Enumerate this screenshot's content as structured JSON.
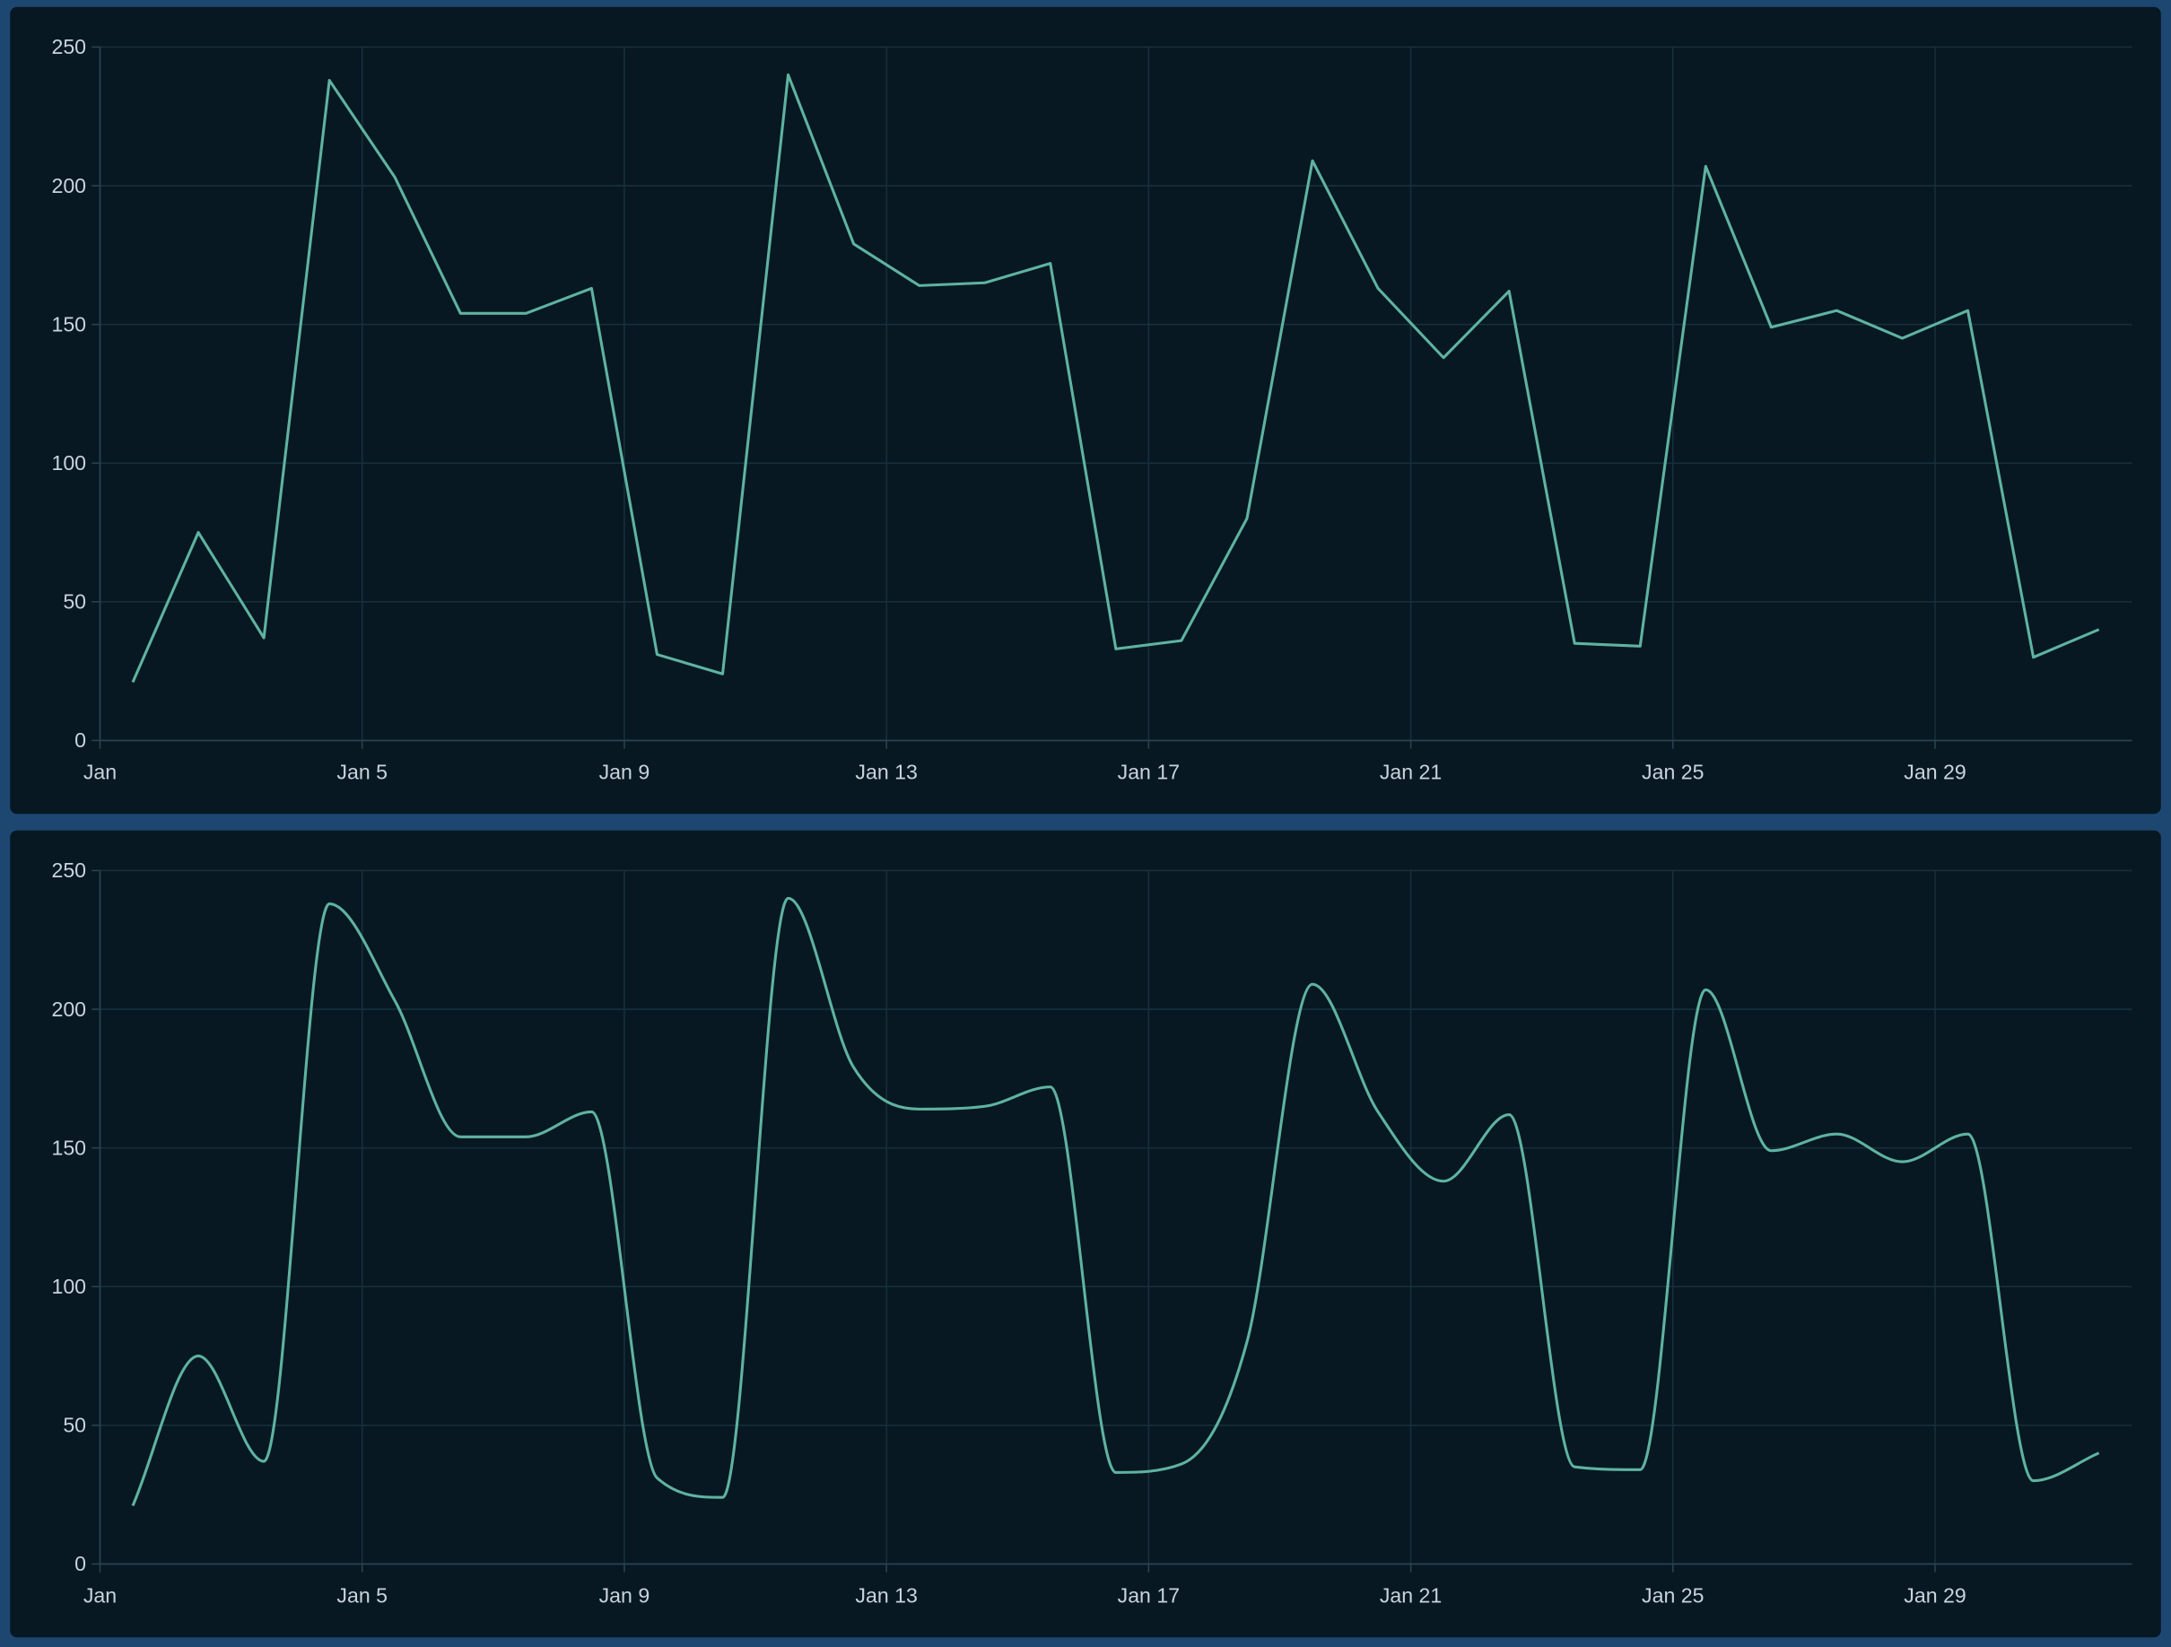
{
  "colors": {
    "background": "#1d4771",
    "panel": "#071823",
    "grid": "#16303c",
    "line": "#5fb3a0",
    "text": "#c9d3db"
  },
  "chart_data": [
    {
      "type": "line",
      "interpolation": "linear",
      "x": [
        "Jan 1 12:00",
        "Jan 2 12:00",
        "Jan 3 12:00",
        "Jan 4 12:00",
        "Jan 5 12:00",
        "Jan 6 12:00",
        "Jan 7 12:00",
        "Jan 8 12:00",
        "Jan 9 12:00",
        "Jan 10 12:00",
        "Jan 11 12:00",
        "Jan 12 12:00",
        "Jan 13 12:00",
        "Jan 14 12:00",
        "Jan 15 12:00",
        "Jan 16 12:00",
        "Jan 17 12:00",
        "Jan 18 12:00",
        "Jan 19 12:00",
        "Jan 20 12:00",
        "Jan 21 12:00",
        "Jan 22 12:00",
        "Jan 23 12:00",
        "Jan 24 12:00",
        "Jan 25 12:00",
        "Jan 26 12:00",
        "Jan 27 12:00",
        "Jan 28 12:00",
        "Jan 29 12:00",
        "Jan 30 12:00",
        "Jan 31 12:00"
      ],
      "values": [
        21,
        75,
        37,
        238,
        203,
        154,
        154,
        163,
        31,
        24,
        240,
        179,
        164,
        165,
        172,
        33,
        36,
        80,
        209,
        163,
        138,
        162,
        35,
        34,
        207,
        149,
        155,
        145,
        155,
        30,
        40
      ],
      "xlim": [
        "Jan 1",
        "Feb 1"
      ],
      "ylim": [
        0,
        250
      ],
      "xticks": [
        "Jan",
        "Jan 5",
        "Jan 9",
        "Jan 13",
        "Jan 17",
        "Jan 21",
        "Jan 25",
        "Jan 29"
      ],
      "yticks": [
        "0",
        "50",
        "100",
        "150",
        "200",
        "250"
      ],
      "grid": true
    },
    {
      "type": "line",
      "interpolation": "smooth",
      "x": [
        "Jan 1 12:00",
        "Jan 2 12:00",
        "Jan 3 12:00",
        "Jan 4 12:00",
        "Jan 5 12:00",
        "Jan 6 12:00",
        "Jan 7 12:00",
        "Jan 8 12:00",
        "Jan 9 12:00",
        "Jan 10 12:00",
        "Jan 11 12:00",
        "Jan 12 12:00",
        "Jan 13 12:00",
        "Jan 14 12:00",
        "Jan 15 12:00",
        "Jan 16 12:00",
        "Jan 17 12:00",
        "Jan 18 12:00",
        "Jan 19 12:00",
        "Jan 20 12:00",
        "Jan 21 12:00",
        "Jan 22 12:00",
        "Jan 23 12:00",
        "Jan 24 12:00",
        "Jan 25 12:00",
        "Jan 26 12:00",
        "Jan 27 12:00",
        "Jan 28 12:00",
        "Jan 29 12:00",
        "Jan 30 12:00",
        "Jan 31 12:00"
      ],
      "values": [
        21,
        75,
        37,
        238,
        203,
        154,
        154,
        163,
        31,
        24,
        240,
        179,
        164,
        165,
        172,
        33,
        36,
        80,
        209,
        163,
        138,
        162,
        35,
        34,
        207,
        149,
        155,
        145,
        155,
        30,
        40
      ],
      "xlim": [
        "Jan 1",
        "Feb 1"
      ],
      "ylim": [
        0,
        250
      ],
      "xticks": [
        "Jan",
        "Jan 5",
        "Jan 9",
        "Jan 13",
        "Jan 17",
        "Jan 21",
        "Jan 25",
        "Jan 29"
      ],
      "yticks": [
        "0",
        "50",
        "100",
        "150",
        "200",
        "250"
      ],
      "grid": true
    }
  ]
}
